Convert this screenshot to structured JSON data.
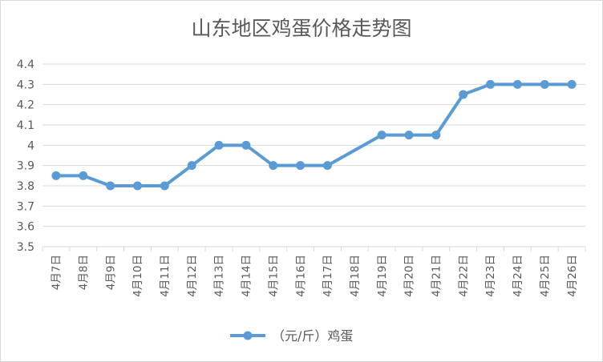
{
  "chart_data": {
    "type": "line",
    "title": "山东地区鸡蛋价格走势图",
    "xlabel": "",
    "ylabel": "",
    "categories": [
      "4月7日",
      "4月8日",
      "4月9日",
      "4月10日",
      "4月11日",
      "4月12日",
      "4月13日",
      "4月14日",
      "4月15日",
      "4月16日",
      "4月17日",
      "4月18日",
      "4月19日",
      "4月20日",
      "4月21日",
      "4月22日",
      "4月23日",
      "4月24日",
      "4月25日",
      "4月26日"
    ],
    "series": [
      {
        "name": "（元/斤）鸡蛋",
        "values": [
          3.85,
          3.85,
          3.8,
          3.8,
          3.8,
          3.9,
          4.0,
          4.0,
          3.9,
          3.9,
          3.9,
          null,
          4.05,
          4.05,
          4.05,
          4.25,
          4.3,
          4.3,
          4.3,
          4.3
        ],
        "color": "#5b9bd5"
      }
    ],
    "ylim": [
      3.5,
      4.4
    ],
    "yticks": [
      "3.5",
      "3.6",
      "3.7",
      "3.8",
      "3.9",
      "4",
      "4.1",
      "4.2",
      "4.3",
      "4.4"
    ],
    "grid": true,
    "legend": "bottom",
    "connect_gaps": true,
    "colors": {
      "line": "#5b9bd5",
      "grid": "#d9d9d9",
      "text": "#595959"
    }
  }
}
